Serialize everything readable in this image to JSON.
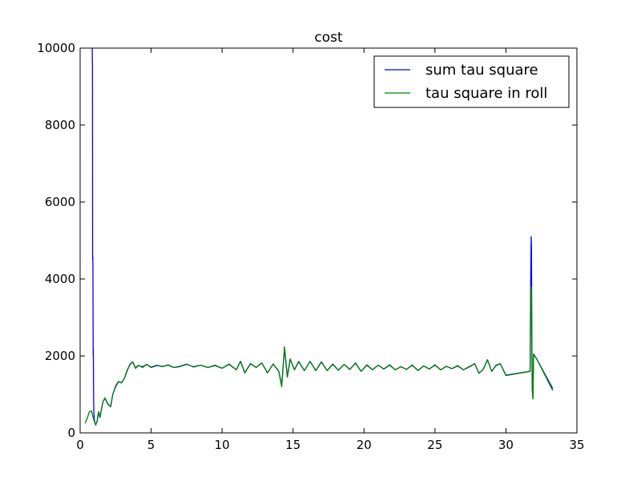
{
  "chart_data": {
    "type": "line",
    "title": "cost",
    "xlabel": "",
    "ylabel": "",
    "xlim": [
      0,
      35
    ],
    "ylim": [
      0,
      10000
    ],
    "xticks": [
      "0",
      "5",
      "10",
      "15",
      "20",
      "25",
      "30",
      "35"
    ],
    "yticks": [
      "0",
      "2000",
      "4000",
      "6000",
      "8000",
      "10000"
    ],
    "grid": false,
    "legend_position": "top-right",
    "series": [
      {
        "name": "sum tau square",
        "color": "#0000ff",
        "points": [
          [
            0.85,
            10000
          ],
          [
            0.87,
            9500
          ],
          [
            0.88,
            4500
          ],
          [
            0.89,
            4600
          ],
          [
            0.9,
            4400
          ],
          [
            0.92,
            2000
          ],
          [
            0.93,
            2200
          ],
          [
            0.95,
            900
          ],
          [
            0.97,
            500
          ],
          [
            1.0,
            350
          ],
          [
            1.05,
            250
          ],
          [
            1.1,
            220
          ],
          [
            1.2,
            300
          ],
          [
            1.3,
            550
          ],
          [
            1.4,
            400
          ],
          [
            1.6,
            800
          ],
          [
            1.75,
            900
          ],
          [
            1.95,
            750
          ],
          [
            2.15,
            680
          ],
          [
            2.3,
            1000
          ],
          [
            2.5,
            1200
          ],
          [
            2.7,
            1330
          ],
          [
            2.9,
            1300
          ],
          [
            3.1,
            1400
          ],
          [
            3.3,
            1600
          ],
          [
            3.5,
            1780
          ],
          [
            3.7,
            1850
          ],
          [
            3.9,
            1680
          ],
          [
            4.1,
            1750
          ],
          [
            4.4,
            1720
          ],
          [
            4.7,
            1780
          ],
          [
            5.0,
            1700
          ],
          [
            5.4,
            1750
          ],
          [
            5.8,
            1730
          ],
          [
            6.2,
            1760
          ],
          [
            6.6,
            1700
          ],
          [
            7.0,
            1720
          ],
          [
            7.5,
            1780
          ],
          [
            8.0,
            1720
          ],
          [
            8.5,
            1760
          ],
          [
            9.0,
            1700
          ],
          [
            9.5,
            1750
          ],
          [
            10.0,
            1680
          ],
          [
            10.5,
            1780
          ],
          [
            11.0,
            1640
          ],
          [
            11.3,
            1860
          ],
          [
            11.6,
            1560
          ],
          [
            12.0,
            1800
          ],
          [
            12.4,
            1700
          ],
          [
            12.8,
            1820
          ],
          [
            13.2,
            1560
          ],
          [
            13.6,
            1790
          ],
          [
            14.0,
            1600
          ],
          [
            14.2,
            1230
          ],
          [
            14.4,
            2200
          ],
          [
            14.6,
            1450
          ],
          [
            14.8,
            1920
          ],
          [
            15.1,
            1640
          ],
          [
            15.4,
            1850
          ],
          [
            15.8,
            1620
          ],
          [
            16.2,
            1860
          ],
          [
            16.6,
            1620
          ],
          [
            17.0,
            1840
          ],
          [
            17.4,
            1620
          ],
          [
            17.8,
            1780
          ],
          [
            18.2,
            1630
          ],
          [
            18.6,
            1780
          ],
          [
            19.0,
            1650
          ],
          [
            19.4,
            1810
          ],
          [
            19.8,
            1600
          ],
          [
            20.2,
            1760
          ],
          [
            20.6,
            1640
          ],
          [
            21.0,
            1760
          ],
          [
            21.4,
            1660
          ],
          [
            21.8,
            1760
          ],
          [
            22.2,
            1640
          ],
          [
            22.6,
            1720
          ],
          [
            23.0,
            1650
          ],
          [
            23.4,
            1760
          ],
          [
            23.8,
            1620
          ],
          [
            24.2,
            1740
          ],
          [
            24.6,
            1660
          ],
          [
            25.0,
            1760
          ],
          [
            25.4,
            1640
          ],
          [
            25.8,
            1730
          ],
          [
            26.2,
            1670
          ],
          [
            26.6,
            1740
          ],
          [
            27.0,
            1640
          ],
          [
            27.4,
            1710
          ],
          [
            27.8,
            1800
          ],
          [
            28.1,
            1550
          ],
          [
            28.4,
            1650
          ],
          [
            28.7,
            1900
          ],
          [
            29.0,
            1600
          ],
          [
            29.3,
            1750
          ],
          [
            29.6,
            1800
          ],
          [
            30.0,
            1500
          ],
          [
            31.7,
            1600
          ],
          [
            31.75,
            4200
          ],
          [
            31.78,
            5100
          ],
          [
            31.8,
            4800
          ],
          [
            31.82,
            3000
          ],
          [
            31.85,
            1200
          ],
          [
            31.9,
            900
          ],
          [
            31.95,
            2050
          ],
          [
            32.2,
            1900
          ],
          [
            33.3,
            1150
          ]
        ]
      },
      {
        "name": "tau square in roll",
        "color": "#008000",
        "points": [
          [
            0.35,
            250
          ],
          [
            0.5,
            380
          ],
          [
            0.65,
            550
          ],
          [
            0.8,
            570
          ],
          [
            0.9,
            420
          ],
          [
            1.0,
            300
          ],
          [
            1.1,
            200
          ],
          [
            1.2,
            320
          ],
          [
            1.3,
            550
          ],
          [
            1.4,
            420
          ],
          [
            1.6,
            800
          ],
          [
            1.75,
            910
          ],
          [
            1.95,
            760
          ],
          [
            2.15,
            680
          ],
          [
            2.3,
            1000
          ],
          [
            2.5,
            1220
          ],
          [
            2.7,
            1340
          ],
          [
            2.9,
            1300
          ],
          [
            3.1,
            1400
          ],
          [
            3.3,
            1620
          ],
          [
            3.5,
            1760
          ],
          [
            3.7,
            1850
          ],
          [
            3.9,
            1690
          ],
          [
            4.1,
            1760
          ],
          [
            4.4,
            1700
          ],
          [
            4.7,
            1780
          ],
          [
            5.0,
            1710
          ],
          [
            5.4,
            1760
          ],
          [
            5.8,
            1720
          ],
          [
            6.2,
            1770
          ],
          [
            6.6,
            1700
          ],
          [
            7.0,
            1730
          ],
          [
            7.5,
            1790
          ],
          [
            8.0,
            1710
          ],
          [
            8.5,
            1760
          ],
          [
            9.0,
            1700
          ],
          [
            9.5,
            1760
          ],
          [
            10.0,
            1680
          ],
          [
            10.5,
            1790
          ],
          [
            11.0,
            1640
          ],
          [
            11.3,
            1860
          ],
          [
            11.6,
            1560
          ],
          [
            12.0,
            1800
          ],
          [
            12.4,
            1700
          ],
          [
            12.8,
            1820
          ],
          [
            13.2,
            1560
          ],
          [
            13.6,
            1790
          ],
          [
            14.0,
            1600
          ],
          [
            14.2,
            1200
          ],
          [
            14.4,
            2240
          ],
          [
            14.6,
            1450
          ],
          [
            14.8,
            1920
          ],
          [
            15.1,
            1640
          ],
          [
            15.4,
            1860
          ],
          [
            15.8,
            1620
          ],
          [
            16.2,
            1860
          ],
          [
            16.6,
            1620
          ],
          [
            17.0,
            1850
          ],
          [
            17.4,
            1620
          ],
          [
            17.8,
            1790
          ],
          [
            18.2,
            1630
          ],
          [
            18.6,
            1780
          ],
          [
            19.0,
            1650
          ],
          [
            19.4,
            1820
          ],
          [
            19.8,
            1600
          ],
          [
            20.2,
            1770
          ],
          [
            20.6,
            1640
          ],
          [
            21.0,
            1760
          ],
          [
            21.4,
            1660
          ],
          [
            21.8,
            1770
          ],
          [
            22.2,
            1640
          ],
          [
            22.6,
            1720
          ],
          [
            23.0,
            1650
          ],
          [
            23.4,
            1770
          ],
          [
            23.8,
            1620
          ],
          [
            24.2,
            1740
          ],
          [
            24.6,
            1660
          ],
          [
            25.0,
            1770
          ],
          [
            25.4,
            1640
          ],
          [
            25.8,
            1730
          ],
          [
            26.2,
            1670
          ],
          [
            26.6,
            1750
          ],
          [
            27.0,
            1640
          ],
          [
            27.4,
            1720
          ],
          [
            27.8,
            1800
          ],
          [
            28.1,
            1550
          ],
          [
            28.4,
            1650
          ],
          [
            28.7,
            1900
          ],
          [
            29.0,
            1600
          ],
          [
            29.3,
            1760
          ],
          [
            29.6,
            1800
          ],
          [
            30.0,
            1490
          ],
          [
            31.7,
            1600
          ],
          [
            31.75,
            3600
          ],
          [
            31.78,
            3800
          ],
          [
            31.8,
            3700
          ],
          [
            31.82,
            2500
          ],
          [
            31.85,
            1200
          ],
          [
            31.9,
            880
          ],
          [
            31.95,
            2050
          ],
          [
            32.2,
            1900
          ],
          [
            33.3,
            1100
          ]
        ]
      }
    ]
  }
}
